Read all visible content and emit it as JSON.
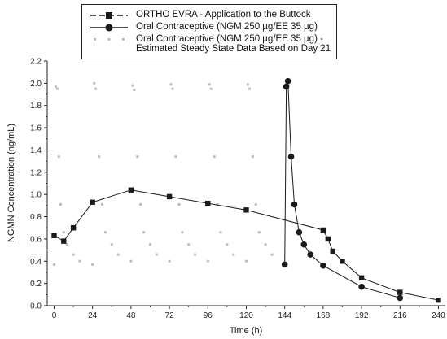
{
  "chart_data": {
    "type": "line",
    "xlabel": "Time (h)",
    "ylabel": "NGMN Concentration (ng/mL)",
    "xlim": [
      0,
      240
    ],
    "ylim": [
      0,
      2.2
    ],
    "xticks": [
      0,
      24,
      48,
      72,
      96,
      120,
      144,
      168,
      192,
      216,
      240
    ],
    "yticks": [
      0.0,
      0.2,
      0.4,
      0.6,
      0.8,
      1.0,
      1.2,
      1.4,
      1.6,
      1.8,
      2.0,
      2.2
    ],
    "xtick_labels": [
      "0",
      "24",
      "48",
      "72",
      "96",
      "120",
      "144",
      "168",
      "192",
      "216",
      "240"
    ],
    "ytick_labels": [
      "0.0",
      "0.2",
      "0.4",
      "0.6",
      "0.8",
      "1.0",
      "1.2",
      "1.4",
      "1.6",
      "1.8",
      "2.0",
      "2.2"
    ],
    "legend_position": "top-center",
    "series": [
      {
        "name": "ORTHO EVRA - Application to the Buttock",
        "marker": "square",
        "line": "dashed-legend / solid-plot",
        "color": "#1a1a1a",
        "x": [
          0,
          6,
          12,
          24,
          48,
          72,
          96,
          120,
          168,
          171,
          174,
          180,
          192,
          216,
          240
        ],
        "y": [
          0.63,
          0.58,
          0.7,
          0.93,
          1.04,
          0.98,
          0.92,
          0.86,
          0.68,
          0.6,
          0.49,
          0.4,
          0.25,
          0.12,
          0.05
        ]
      },
      {
        "name": "Oral Contraceptive (NGM 250 µg/EE 35 µg)",
        "marker": "circle",
        "line": "solid",
        "color": "#1a1a1a",
        "x": [
          144,
          145,
          146,
          148,
          150,
          153,
          156,
          160,
          168,
          192,
          216
        ],
        "y": [
          0.37,
          1.97,
          2.02,
          1.34,
          0.91,
          0.66,
          0.55,
          0.46,
          0.36,
          0.17,
          0.07
        ]
      },
      {
        "name": "Oral Contraceptive (NGM 250 µg/EE 35 µg) - Estimated Steady State Data Based on Day 21",
        "marker": "small-square",
        "line": "none",
        "color": "#bdbdbd",
        "x": [
          0,
          1,
          2,
          3,
          4,
          6,
          8,
          12,
          16,
          24,
          25,
          26,
          28,
          30,
          32,
          36,
          40,
          48,
          49,
          50,
          52,
          54,
          56,
          60,
          64,
          72,
          73,
          74,
          76,
          78,
          80,
          84,
          88,
          96,
          97,
          98,
          100,
          102,
          104,
          108,
          112,
          120,
          121,
          122,
          124,
          126,
          128,
          132,
          136
        ],
        "y": [
          0.37,
          1.97,
          1.95,
          1.34,
          0.91,
          0.66,
          0.55,
          0.46,
          0.4,
          0.37,
          2.0,
          1.95,
          1.34,
          0.91,
          0.66,
          0.55,
          0.46,
          0.4,
          1.98,
          1.94,
          1.34,
          0.91,
          0.66,
          0.55,
          0.46,
          0.4,
          1.99,
          1.95,
          1.34,
          0.91,
          0.66,
          0.55,
          0.46,
          0.4,
          1.99,
          1.95,
          1.34,
          0.91,
          0.66,
          0.55,
          0.46,
          0.4,
          1.99,
          1.95,
          1.34,
          0.91,
          0.66,
          0.55,
          0.46
        ]
      }
    ]
  },
  "legend": {
    "items": [
      {
        "label_line1": "ORTHO EVRA - Application to the Buttock",
        "label_line2": ""
      },
      {
        "label_line1": "Oral Contraceptive (NGM 250 µg/EE 35 µg)",
        "label_line2": ""
      },
      {
        "label_line1": "Oral Contraceptive (NGM 250 µg/EE 35 µg) -",
        "label_line2": "Estimated Steady State Data Based on Day 21"
      }
    ]
  }
}
